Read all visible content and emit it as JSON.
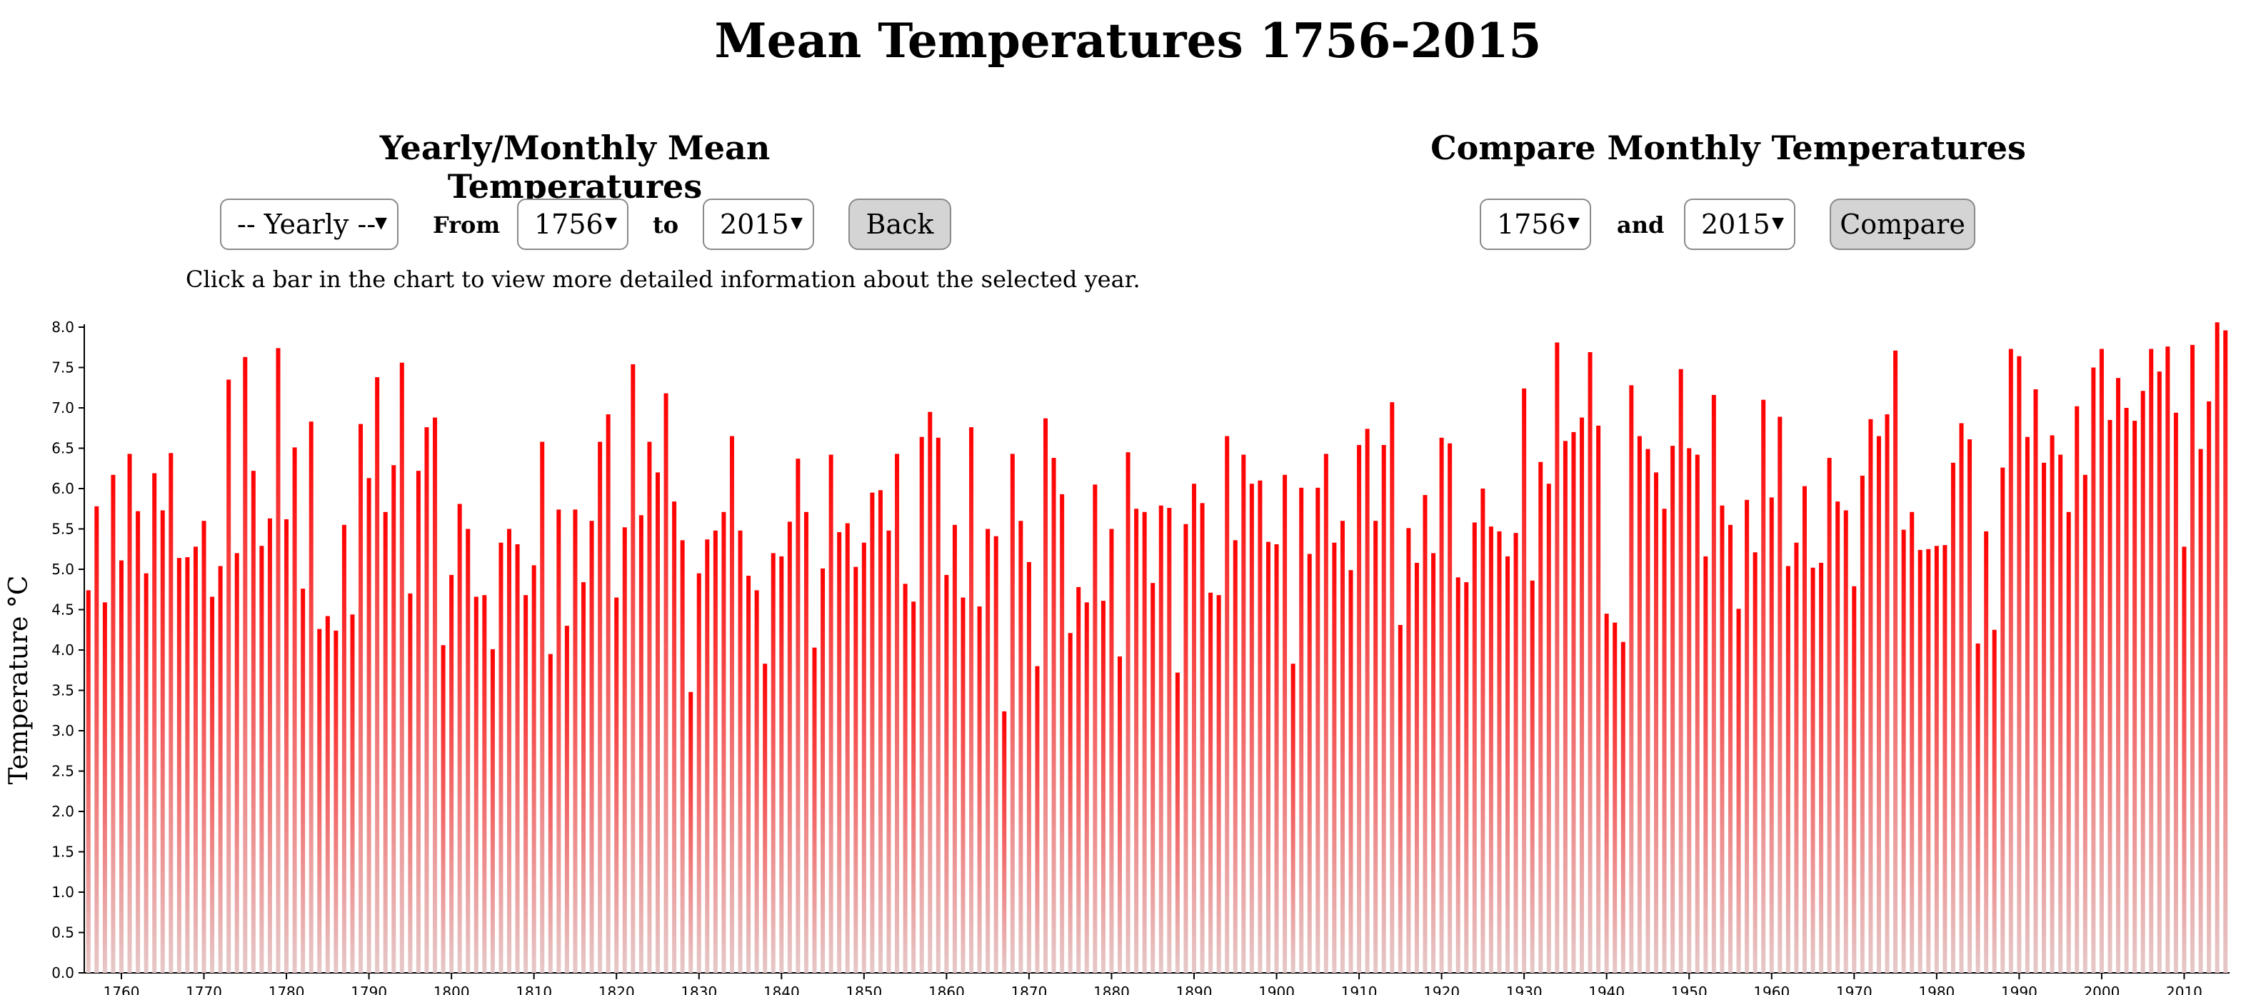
{
  "page": {
    "title": "Mean Temperatures 1756-2015"
  },
  "yearly_panel": {
    "title": "Yearly/Monthly Mean Temperatures",
    "mode_select": "-- Yearly --",
    "from_label": "From",
    "from_select": "1756",
    "to_label": "to",
    "to_select": "2015",
    "back_button": "Back",
    "hint": "Click a bar in the chart to view more detailed information about the selected year."
  },
  "compare_panel": {
    "title": "Compare Monthly Temperatures",
    "first_select": "1756",
    "and_label": "and",
    "second_select": "2015",
    "compare_button": "Compare"
  },
  "colors": {
    "bar_top": "#ff0000",
    "bar_bottom": "#e6c8c8",
    "button_bg": "#d4d4d4"
  },
  "chart_data": {
    "type": "bar",
    "ylabel": "Temperature °C",
    "ylim": [
      0,
      8
    ],
    "yticks": [
      "0.0",
      "0.5",
      "1.0",
      "1.5",
      "2.0",
      "2.5",
      "3.0",
      "3.5",
      "4.0",
      "4.5",
      "5.0",
      "5.5",
      "6.0",
      "6.5",
      "7.0",
      "7.5",
      "8.0"
    ],
    "xticks": [
      "1760",
      "1770",
      "1780",
      "1790",
      "1800",
      "1810",
      "1820",
      "1830",
      "1840",
      "1850",
      "1860",
      "1870",
      "1880",
      "1890",
      "1900",
      "1910",
      "1920",
      "1930",
      "1940",
      "1950",
      "1960",
      "1970",
      "1980",
      "1990",
      "2000",
      "2010"
    ],
    "x_start": 1756,
    "x_end": 2015,
    "values": [
      4.74,
      5.78,
      4.59,
      6.17,
      5.11,
      6.43,
      5.72,
      4.95,
      6.19,
      5.73,
      6.44,
      5.14,
      5.15,
      5.28,
      5.6,
      4.66,
      5.04,
      7.35,
      5.2,
      7.63,
      6.22,
      5.29,
      5.63,
      7.74,
      5.62,
      6.51,
      4.76,
      6.83,
      4.26,
      4.42,
      4.24,
      5.55,
      4.44,
      6.8,
      6.13,
      7.38,
      5.71,
      6.29,
      7.56,
      4.7,
      6.22,
      6.76,
      6.88,
      4.06,
      4.93,
      5.81,
      5.5,
      4.66,
      4.68,
      4.01,
      5.33,
      5.5,
      5.31,
      4.68,
      5.05,
      6.58,
      3.95,
      5.74,
      4.3,
      5.74,
      4.84,
      5.6,
      6.58,
      6.92,
      4.65,
      5.52,
      7.54,
      5.67,
      6.58,
      6.2,
      7.18,
      5.84,
      5.36,
      3.48,
      4.95,
      5.37,
      5.48,
      5.71,
      6.65,
      5.48,
      4.92,
      4.74,
      3.83,
      5.2,
      5.16,
      5.59,
      6.37,
      5.71,
      4.03,
      5.01,
      6.42,
      5.46,
      5.57,
      5.03,
      5.33,
      5.95,
      5.98,
      5.48,
      6.43,
      4.82,
      4.6,
      6.64,
      6.95,
      6.63,
      4.93,
      5.55,
      4.65,
      6.76,
      4.54,
      5.5,
      5.41,
      3.24,
      6.43,
      5.6,
      5.09,
      3.8,
      6.87,
      6.38,
      5.93,
      4.21,
      4.78,
      4.59,
      6.05,
      4.61,
      5.5,
      3.92,
      6.45,
      5.75,
      5.71,
      4.83,
      5.79,
      5.76,
      3.72,
      5.56,
      6.06,
      5.82,
      4.71,
      4.68,
      6.65,
      5.36,
      6.42,
      6.06,
      6.1,
      5.34,
      5.31,
      6.17,
      3.83,
      6.01,
      5.19,
      6.01,
      6.43,
      5.33,
      5.6,
      4.99,
      6.54,
      6.74,
      5.6,
      6.54,
      7.07,
      4.31,
      5.51,
      5.08,
      5.92,
      5.2,
      6.63,
      6.56,
      4.9,
      4.84,
      5.58,
      6.0,
      5.53,
      5.47,
      5.16,
      5.45,
      7.24,
      4.86,
      6.33,
      6.06,
      7.81,
      6.59,
      6.7,
      6.88,
      7.69,
      6.78,
      4.45,
      4.34,
      4.1,
      7.28,
      6.65,
      6.49,
      6.2,
      5.75,
      6.53,
      7.48,
      6.5,
      6.42,
      5.16,
      7.16,
      5.79,
      5.55,
      4.51,
      5.86,
      5.21,
      7.1,
      5.89,
      6.89,
      5.04,
      5.33,
      6.03,
      5.02,
      5.08,
      6.38,
      5.84,
      5.73,
      4.79,
      6.16,
      6.86,
      6.65,
      6.92,
      7.71,
      5.49,
      5.71,
      5.24,
      5.25,
      5.29,
      5.3,
      6.32,
      6.81,
      6.61,
      4.08,
      5.47,
      4.25,
      6.26,
      7.73,
      7.64,
      6.64,
      7.23,
      6.32,
      6.66,
      6.42,
      5.71,
      7.02,
      6.17,
      7.5,
      7.73,
      6.85,
      7.37,
      7.0,
      6.84,
      7.21,
      7.73,
      7.45,
      7.76,
      6.94,
      5.28,
      7.78,
      6.49,
      7.08,
      8.06,
      7.96
    ]
  }
}
